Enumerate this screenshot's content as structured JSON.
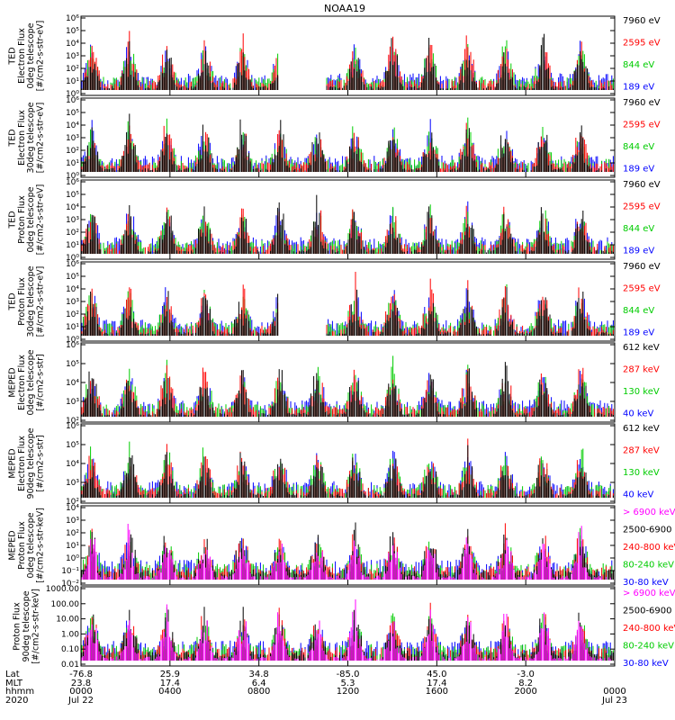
{
  "title": "NOAA19",
  "chart_data": [
    {
      "type": "line",
      "ylabel": [
        "TED",
        "Electron Flux",
        "0deg telescope",
        "[#/cm2-s-str-eV]"
      ],
      "ytick_labels": [
        "10⁰",
        "10¹",
        "10²",
        "10³",
        "10⁴",
        "10⁵",
        "10⁶"
      ],
      "series": [
        {
          "name": "7960 eV",
          "color": "#000000"
        },
        {
          "name": "2595 eV",
          "color": "#ff0000"
        },
        {
          "name": "844 eV",
          "color": "#00cc00"
        },
        {
          "name": "189 eV",
          "color": "#0000ff"
        }
      ],
      "gap": [
        0.37,
        0.46
      ]
    },
    {
      "type": "line",
      "ylabel": [
        "TED",
        "Electron Flux",
        "30deg telescope",
        "[#/cm2-s-str-eV]"
      ],
      "ytick_labels": [
        "10⁰",
        "10¹",
        "10²",
        "10³",
        "10⁴",
        "10⁵",
        "10⁶"
      ],
      "series": [
        {
          "name": "7960 eV",
          "color": "#000000"
        },
        {
          "name": "2595 eV",
          "color": "#ff0000"
        },
        {
          "name": "844 eV",
          "color": "#00cc00"
        },
        {
          "name": "189 eV",
          "color": "#0000ff"
        }
      ]
    },
    {
      "type": "line",
      "ylabel": [
        "TED",
        "Proton Flux",
        "0deg telescope",
        "[#/cm2-s-str-eV]"
      ],
      "ytick_labels": [
        "10⁰",
        "10¹",
        "10²",
        "10³",
        "10⁴",
        "10⁵",
        "10⁶"
      ],
      "series": [
        {
          "name": "7960 eV",
          "color": "#000000"
        },
        {
          "name": "2595 eV",
          "color": "#ff0000"
        },
        {
          "name": "844 eV",
          "color": "#00cc00"
        },
        {
          "name": "189 eV",
          "color": "#0000ff"
        }
      ]
    },
    {
      "type": "line",
      "ylabel": [
        "TED",
        "Proton Flux",
        "30deg telescope",
        "[#/cm2-s-str-eV]"
      ],
      "ytick_labels": [
        "10⁰",
        "10¹",
        "10²",
        "10³",
        "10⁴",
        "10⁵",
        "10⁶"
      ],
      "series": [
        {
          "name": "7960 eV",
          "color": "#000000"
        },
        {
          "name": "2595 eV",
          "color": "#ff0000"
        },
        {
          "name": "844 eV",
          "color": "#00cc00"
        },
        {
          "name": "189 eV",
          "color": "#0000ff"
        }
      ],
      "gap": [
        0.37,
        0.46
      ]
    },
    {
      "type": "line",
      "ylabel": [
        "MEPED",
        "Electron Flux",
        "0deg telescope",
        "[#/cm2-s-str]"
      ],
      "ytick_labels": [
        "10²",
        "10³",
        "10⁴",
        "10⁵",
        "10⁶"
      ],
      "series": [
        {
          "name": "612 keV",
          "color": "#000000"
        },
        {
          "name": "287 keV",
          "color": "#ff0000"
        },
        {
          "name": "130 keV",
          "color": "#00cc00"
        },
        {
          "name": "40 keV",
          "color": "#0000ff"
        }
      ]
    },
    {
      "type": "line",
      "ylabel": [
        "MEPED",
        "Electron Flux",
        "90deg telescope",
        "[#/cm2-s-str]"
      ],
      "ytick_labels": [
        "10²",
        "10³",
        "10⁴",
        "10⁵",
        "10⁶"
      ],
      "series": [
        {
          "name": "612 keV",
          "color": "#000000"
        },
        {
          "name": "287 keV",
          "color": "#ff0000"
        },
        {
          "name": "130 keV",
          "color": "#00cc00"
        },
        {
          "name": "40 keV",
          "color": "#0000ff"
        }
      ]
    },
    {
      "type": "line",
      "ylabel": [
        "MEPED",
        "Proton Flux",
        "0deg telescope",
        "[#/cm2-s-str-keV]"
      ],
      "ytick_labels": [
        "10⁻²",
        "10⁻¹",
        "10⁰",
        "10¹",
        "10²",
        "10³",
        "10⁴"
      ],
      "series": [
        {
          "name": "> 6900 keV",
          "color": "#ff00ff"
        },
        {
          "name": "2500-6900",
          "color": "#000000"
        },
        {
          "name": "240-800 keV",
          "color": "#ff0000"
        },
        {
          "name": "80-240 keV",
          "color": "#00cc00"
        },
        {
          "name": "30-80 keV",
          "color": "#0000ff"
        }
      ]
    },
    {
      "type": "line",
      "ylabel": [
        "Proton Flux",
        "90deg telescope",
        "[#/cm2-s-str-keV]"
      ],
      "ytick_labels": [
        "0.01",
        "0.10",
        "1.00",
        "10.00",
        "100.00",
        "1000.00"
      ],
      "series": [
        {
          "name": "> 6900 keV",
          "color": "#ff00ff"
        },
        {
          "name": "2500-6900",
          "color": "#000000"
        },
        {
          "name": "240-800 keV",
          "color": "#ff0000"
        },
        {
          "name": "80-240 keV",
          "color": "#00cc00"
        },
        {
          "name": "30-80 keV",
          "color": "#0000ff"
        }
      ]
    }
  ],
  "xaxis": {
    "row_labels": [
      "Lat",
      "MLT",
      "hhmm",
      "2020"
    ],
    "columns": [
      {
        "lat": "-76.8",
        "mlt": "23.8",
        "hhmm": "0000",
        "date": "Jul 22"
      },
      {
        "lat": "25.9",
        "mlt": "17.4",
        "hhmm": "0400",
        "date": ""
      },
      {
        "lat": "34.8",
        "mlt": "6.4",
        "hhmm": "0800",
        "date": ""
      },
      {
        "lat": "-85.0",
        "mlt": "5.3",
        "hhmm": "1200",
        "date": ""
      },
      {
        "lat": "45.0",
        "mlt": "17.4",
        "hhmm": "1600",
        "date": ""
      },
      {
        "lat": "-3.0",
        "mlt": "8.2",
        "hhmm": "2000",
        "date": ""
      },
      {
        "lat": "",
        "mlt": "",
        "hhmm": "0000",
        "date": "Jul 23"
      }
    ]
  }
}
